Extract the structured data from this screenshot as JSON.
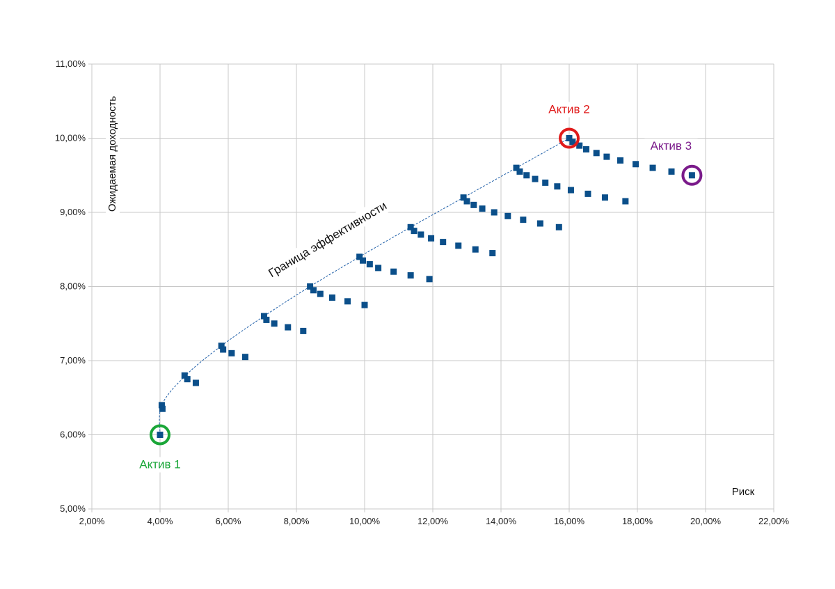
{
  "chart_data": {
    "type": "scatter",
    "title": "",
    "xlabel": "Риск",
    "ylabel": "Ожидаемая доходность",
    "xlim": [
      2,
      22
    ],
    "ylim": [
      5,
      11
    ],
    "xticks": [
      2,
      4,
      6,
      8,
      10,
      12,
      14,
      16,
      18,
      20,
      22
    ],
    "yticks": [
      5,
      6,
      7,
      8,
      9,
      10,
      11
    ],
    "xtick_labels": [
      "2,00%",
      "4,00%",
      "6,00%",
      "8,00%",
      "10,00%",
      "12,00%",
      "14,00%",
      "16,00%",
      "18,00%",
      "20,00%",
      "22,00%"
    ],
    "ytick_labels": [
      "5,00%",
      "6,00%",
      "7,00%",
      "8,00%",
      "9,00%",
      "10,00%",
      "11,00%"
    ],
    "grid": true,
    "marker_color": "#0b4f8a",
    "frontier": {
      "label": "Граница эффективности",
      "color": "#1f5fa8",
      "points": [
        [
          4.0,
          6.0
        ],
        [
          4.05,
          6.4
        ],
        [
          4.75,
          6.8
        ],
        [
          5.8,
          7.2
        ],
        [
          7.05,
          7.6
        ],
        [
          8.4,
          8.0
        ],
        [
          9.85,
          8.4
        ],
        [
          11.35,
          8.8
        ],
        [
          12.9,
          9.2
        ],
        [
          14.45,
          9.6
        ],
        [
          16.0,
          10.0
        ]
      ]
    },
    "series": [
      {
        "name": "portfolios",
        "points": [
          [
            4.0,
            6.0
          ],
          [
            4.05,
            6.4
          ],
          [
            4.07,
            6.35
          ],
          [
            4.72,
            6.8
          ],
          [
            4.8,
            6.75
          ],
          [
            5.05,
            6.7
          ],
          [
            5.8,
            7.2
          ],
          [
            5.85,
            7.15
          ],
          [
            6.1,
            7.1
          ],
          [
            6.5,
            7.05
          ],
          [
            7.05,
            7.6
          ],
          [
            7.12,
            7.55
          ],
          [
            7.35,
            7.5
          ],
          [
            7.75,
            7.45
          ],
          [
            8.2,
            7.4
          ],
          [
            8.4,
            8.0
          ],
          [
            8.5,
            7.95
          ],
          [
            8.7,
            7.9
          ],
          [
            9.05,
            7.85
          ],
          [
            9.5,
            7.8
          ],
          [
            10.0,
            7.75
          ],
          [
            9.85,
            8.4
          ],
          [
            9.95,
            8.35
          ],
          [
            10.15,
            8.3
          ],
          [
            10.4,
            8.25
          ],
          [
            10.85,
            8.2
          ],
          [
            11.35,
            8.15
          ],
          [
            11.9,
            8.1
          ],
          [
            11.35,
            8.8
          ],
          [
            11.45,
            8.75
          ],
          [
            11.65,
            8.7
          ],
          [
            11.95,
            8.65
          ],
          [
            12.3,
            8.6
          ],
          [
            12.75,
            8.55
          ],
          [
            13.25,
            8.5
          ],
          [
            13.75,
            8.45
          ],
          [
            12.9,
            9.2
          ],
          [
            13.0,
            9.15
          ],
          [
            13.2,
            9.1
          ],
          [
            13.45,
            9.05
          ],
          [
            13.8,
            9.0
          ],
          [
            14.2,
            8.95
          ],
          [
            14.65,
            8.9
          ],
          [
            15.15,
            8.85
          ],
          [
            15.7,
            8.8
          ],
          [
            14.45,
            9.6
          ],
          [
            14.55,
            9.55
          ],
          [
            14.75,
            9.5
          ],
          [
            15.0,
            9.45
          ],
          [
            15.3,
            9.4
          ],
          [
            15.65,
            9.35
          ],
          [
            16.05,
            9.3
          ],
          [
            16.55,
            9.25
          ],
          [
            17.05,
            9.2
          ],
          [
            17.65,
            9.15
          ],
          [
            16.0,
            10.0
          ],
          [
            16.1,
            9.95
          ],
          [
            16.3,
            9.9
          ],
          [
            16.5,
            9.85
          ],
          [
            16.8,
            9.8
          ],
          [
            17.1,
            9.75
          ],
          [
            17.5,
            9.7
          ],
          [
            17.95,
            9.65
          ],
          [
            18.45,
            9.6
          ],
          [
            19.0,
            9.55
          ],
          [
            19.6,
            9.5
          ]
        ]
      }
    ],
    "annotations": [
      {
        "text": "Актив 1",
        "x": 4.0,
        "y": 6.0,
        "color": "#1aa638",
        "placement": "below"
      },
      {
        "text": "Актив 2",
        "x": 16.0,
        "y": 10.0,
        "color": "#e01b1b",
        "placement": "above"
      },
      {
        "text": "Актив 3",
        "x": 19.6,
        "y": 9.5,
        "color": "#7a1a8a",
        "placement": "above-left"
      }
    ]
  }
}
